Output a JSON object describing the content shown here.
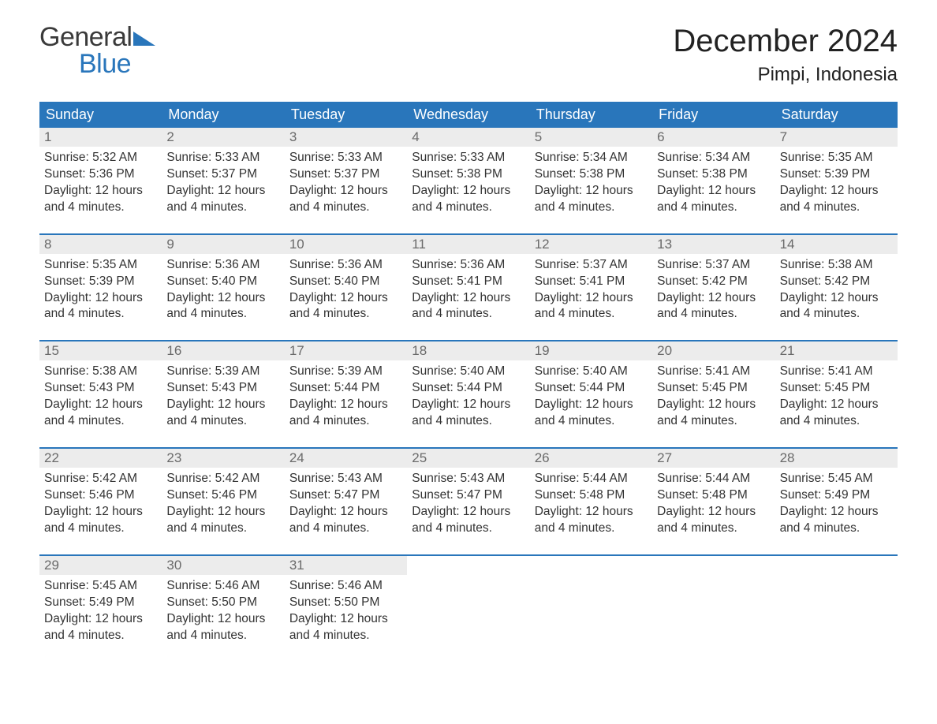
{
  "logo": {
    "word1": "General",
    "word2": "Blue"
  },
  "title": "December 2024",
  "location": "Pimpi, Indonesia",
  "colors": {
    "brand_blue": "#2976bb",
    "header_bg": "#2976bb",
    "daynum_bg": "#ececec",
    "text": "#333333",
    "daynum_text": "#6a6a6a",
    "background": "#ffffff"
  },
  "day_headers": [
    "Sunday",
    "Monday",
    "Tuesday",
    "Wednesday",
    "Thursday",
    "Friday",
    "Saturday"
  ],
  "weeks": [
    [
      {
        "n": "1",
        "sunrise": "Sunrise: 5:32 AM",
        "sunset": "Sunset: 5:36 PM",
        "dl1": "Daylight: 12 hours",
        "dl2": "and 4 minutes."
      },
      {
        "n": "2",
        "sunrise": "Sunrise: 5:33 AM",
        "sunset": "Sunset: 5:37 PM",
        "dl1": "Daylight: 12 hours",
        "dl2": "and 4 minutes."
      },
      {
        "n": "3",
        "sunrise": "Sunrise: 5:33 AM",
        "sunset": "Sunset: 5:37 PM",
        "dl1": "Daylight: 12 hours",
        "dl2": "and 4 minutes."
      },
      {
        "n": "4",
        "sunrise": "Sunrise: 5:33 AM",
        "sunset": "Sunset: 5:38 PM",
        "dl1": "Daylight: 12 hours",
        "dl2": "and 4 minutes."
      },
      {
        "n": "5",
        "sunrise": "Sunrise: 5:34 AM",
        "sunset": "Sunset: 5:38 PM",
        "dl1": "Daylight: 12 hours",
        "dl2": "and 4 minutes."
      },
      {
        "n": "6",
        "sunrise": "Sunrise: 5:34 AM",
        "sunset": "Sunset: 5:38 PM",
        "dl1": "Daylight: 12 hours",
        "dl2": "and 4 minutes."
      },
      {
        "n": "7",
        "sunrise": "Sunrise: 5:35 AM",
        "sunset": "Sunset: 5:39 PM",
        "dl1": "Daylight: 12 hours",
        "dl2": "and 4 minutes."
      }
    ],
    [
      {
        "n": "8",
        "sunrise": "Sunrise: 5:35 AM",
        "sunset": "Sunset: 5:39 PM",
        "dl1": "Daylight: 12 hours",
        "dl2": "and 4 minutes."
      },
      {
        "n": "9",
        "sunrise": "Sunrise: 5:36 AM",
        "sunset": "Sunset: 5:40 PM",
        "dl1": "Daylight: 12 hours",
        "dl2": "and 4 minutes."
      },
      {
        "n": "10",
        "sunrise": "Sunrise: 5:36 AM",
        "sunset": "Sunset: 5:40 PM",
        "dl1": "Daylight: 12 hours",
        "dl2": "and 4 minutes."
      },
      {
        "n": "11",
        "sunrise": "Sunrise: 5:36 AM",
        "sunset": "Sunset: 5:41 PM",
        "dl1": "Daylight: 12 hours",
        "dl2": "and 4 minutes."
      },
      {
        "n": "12",
        "sunrise": "Sunrise: 5:37 AM",
        "sunset": "Sunset: 5:41 PM",
        "dl1": "Daylight: 12 hours",
        "dl2": "and 4 minutes."
      },
      {
        "n": "13",
        "sunrise": "Sunrise: 5:37 AM",
        "sunset": "Sunset: 5:42 PM",
        "dl1": "Daylight: 12 hours",
        "dl2": "and 4 minutes."
      },
      {
        "n": "14",
        "sunrise": "Sunrise: 5:38 AM",
        "sunset": "Sunset: 5:42 PM",
        "dl1": "Daylight: 12 hours",
        "dl2": "and 4 minutes."
      }
    ],
    [
      {
        "n": "15",
        "sunrise": "Sunrise: 5:38 AM",
        "sunset": "Sunset: 5:43 PM",
        "dl1": "Daylight: 12 hours",
        "dl2": "and 4 minutes."
      },
      {
        "n": "16",
        "sunrise": "Sunrise: 5:39 AM",
        "sunset": "Sunset: 5:43 PM",
        "dl1": "Daylight: 12 hours",
        "dl2": "and 4 minutes."
      },
      {
        "n": "17",
        "sunrise": "Sunrise: 5:39 AM",
        "sunset": "Sunset: 5:44 PM",
        "dl1": "Daylight: 12 hours",
        "dl2": "and 4 minutes."
      },
      {
        "n": "18",
        "sunrise": "Sunrise: 5:40 AM",
        "sunset": "Sunset: 5:44 PM",
        "dl1": "Daylight: 12 hours",
        "dl2": "and 4 minutes."
      },
      {
        "n": "19",
        "sunrise": "Sunrise: 5:40 AM",
        "sunset": "Sunset: 5:44 PM",
        "dl1": "Daylight: 12 hours",
        "dl2": "and 4 minutes."
      },
      {
        "n": "20",
        "sunrise": "Sunrise: 5:41 AM",
        "sunset": "Sunset: 5:45 PM",
        "dl1": "Daylight: 12 hours",
        "dl2": "and 4 minutes."
      },
      {
        "n": "21",
        "sunrise": "Sunrise: 5:41 AM",
        "sunset": "Sunset: 5:45 PM",
        "dl1": "Daylight: 12 hours",
        "dl2": "and 4 minutes."
      }
    ],
    [
      {
        "n": "22",
        "sunrise": "Sunrise: 5:42 AM",
        "sunset": "Sunset: 5:46 PM",
        "dl1": "Daylight: 12 hours",
        "dl2": "and 4 minutes."
      },
      {
        "n": "23",
        "sunrise": "Sunrise: 5:42 AM",
        "sunset": "Sunset: 5:46 PM",
        "dl1": "Daylight: 12 hours",
        "dl2": "and 4 minutes."
      },
      {
        "n": "24",
        "sunrise": "Sunrise: 5:43 AM",
        "sunset": "Sunset: 5:47 PM",
        "dl1": "Daylight: 12 hours",
        "dl2": "and 4 minutes."
      },
      {
        "n": "25",
        "sunrise": "Sunrise: 5:43 AM",
        "sunset": "Sunset: 5:47 PM",
        "dl1": "Daylight: 12 hours",
        "dl2": "and 4 minutes."
      },
      {
        "n": "26",
        "sunrise": "Sunrise: 5:44 AM",
        "sunset": "Sunset: 5:48 PM",
        "dl1": "Daylight: 12 hours",
        "dl2": "and 4 minutes."
      },
      {
        "n": "27",
        "sunrise": "Sunrise: 5:44 AM",
        "sunset": "Sunset: 5:48 PM",
        "dl1": "Daylight: 12 hours",
        "dl2": "and 4 minutes."
      },
      {
        "n": "28",
        "sunrise": "Sunrise: 5:45 AM",
        "sunset": "Sunset: 5:49 PM",
        "dl1": "Daylight: 12 hours",
        "dl2": "and 4 minutes."
      }
    ],
    [
      {
        "n": "29",
        "sunrise": "Sunrise: 5:45 AM",
        "sunset": "Sunset: 5:49 PM",
        "dl1": "Daylight: 12 hours",
        "dl2": "and 4 minutes."
      },
      {
        "n": "30",
        "sunrise": "Sunrise: 5:46 AM",
        "sunset": "Sunset: 5:50 PM",
        "dl1": "Daylight: 12 hours",
        "dl2": "and 4 minutes."
      },
      {
        "n": "31",
        "sunrise": "Sunrise: 5:46 AM",
        "sunset": "Sunset: 5:50 PM",
        "dl1": "Daylight: 12 hours",
        "dl2": "and 4 minutes."
      },
      null,
      null,
      null,
      null
    ]
  ]
}
